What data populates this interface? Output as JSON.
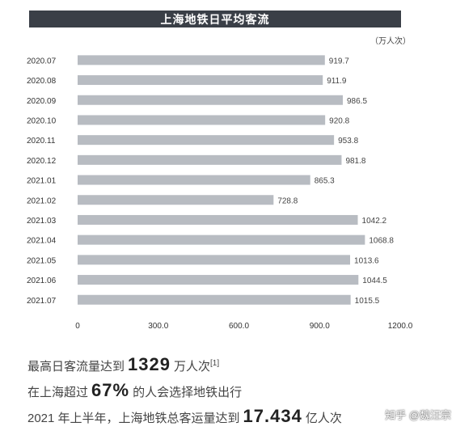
{
  "chart_data": {
    "type": "bar",
    "orientation": "horizontal",
    "title": "上海地铁日平均客流",
    "unit": "（万人次）",
    "categories": [
      "2020.07",
      "2020.08",
      "2020.09",
      "2020.10",
      "2020.11",
      "2020.12",
      "2021.01",
      "2021.02",
      "2021.03",
      "2021.04",
      "2021.05",
      "2021.06",
      "2021.07"
    ],
    "values": [
      919.7,
      911.9,
      986.5,
      920.8,
      953.8,
      981.8,
      865.3,
      728.8,
      1042.2,
      1068.8,
      1013.6,
      1044.5,
      1015.5
    ],
    "value_labels": [
      "919.7",
      "911.9",
      "986.5",
      "920.8",
      "953.8",
      "981.8",
      "865.3",
      "728.8",
      "1042.2",
      "1068.8",
      "1013.6",
      "1044.5",
      "1015.5"
    ],
    "xlim": [
      0,
      1200
    ],
    "xticks": [
      "0",
      "300.0",
      "600.0",
      "900.0",
      "1200.0"
    ],
    "grid": false,
    "bar_color": "#b8bcc2"
  },
  "stats": {
    "line1_prefix": "最高日客流量达到",
    "line1_value": "1329",
    "line1_suffix": "万人次",
    "line1_ref": "[1]",
    "line2_prefix": "在上海超过",
    "line2_value": "67%",
    "line2_suffix": "的人会选择地铁出行",
    "line3_prefix": "2021 年上半年，上海地铁总客运量达到",
    "line3_value": "17.434",
    "line3_suffix": "亿人次"
  },
  "watermark": "知乎 @魏汪宗"
}
